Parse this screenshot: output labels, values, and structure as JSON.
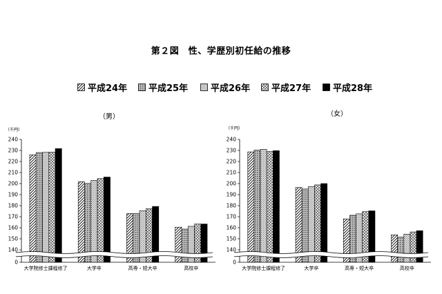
{
  "figure_title": "第２図　性、学歴別初任給の推移",
  "legend": [
    {
      "label": "平成24年",
      "pattern": "diag"
    },
    {
      "label": "平成25年",
      "pattern": "dots"
    },
    {
      "label": "平成26年",
      "pattern": "grid"
    },
    {
      "label": "平成27年",
      "pattern": "cross"
    },
    {
      "label": "平成28年",
      "pattern": "solid"
    }
  ],
  "chart_data": [
    {
      "type": "bar",
      "title": "（男）",
      "ylabel": "（千円）",
      "ylim": [
        130,
        240
      ],
      "yticks": [
        140,
        150,
        160,
        170,
        180,
        190,
        200,
        210,
        220,
        230,
        240
      ],
      "baseline_tick": "0",
      "categories": [
        "大学院修士課程修了",
        "大学卒",
        "高専・短大卒",
        "高校卒"
      ],
      "series": [
        {
          "name": "平成24年",
          "values": [
            226.1,
            201.8,
            172.9,
            160.5
          ]
        },
        {
          "name": "平成25年",
          "values": [
            228.1,
            200.2,
            172.8,
            158.8
          ]
        },
        {
          "name": "平成26年",
          "values": [
            228.3,
            202.9,
            175.4,
            161.3
          ]
        },
        {
          "name": "平成27年",
          "values": [
            228.5,
            204.5,
            177.2,
            163.4
          ]
        },
        {
          "name": "平成28年",
          "values": [
            231.7,
            205.9,
            179.3,
            163.4
          ]
        }
      ]
    },
    {
      "type": "bar",
      "title": "（女）",
      "ylabel": "（千円）",
      "ylim": [
        130,
        240
      ],
      "yticks": [
        140,
        150,
        160,
        170,
        180,
        190,
        200,
        210,
        220,
        230,
        240
      ],
      "baseline_tick": "0",
      "categories": [
        "大学院修士課程修了",
        "大学卒",
        "高専・短大卒",
        "高校卒"
      ],
      "series": [
        {
          "name": "平成24年",
          "values": [
            228.7,
            196.5,
            168.0,
            153.6
          ]
        },
        {
          "name": "平成25年",
          "values": [
            230.4,
            195.1,
            171.3,
            151.6
          ]
        },
        {
          "name": "平成26年",
          "values": [
            231.0,
            197.2,
            172.6,
            154.2
          ]
        },
        {
          "name": "平成27年",
          "values": [
            229.0,
            198.8,
            174.6,
            156.2
          ]
        },
        {
          "name": "平成28年",
          "values": [
            229.8,
            200.0,
            175.3,
            157.3
          ]
        }
      ]
    }
  ]
}
